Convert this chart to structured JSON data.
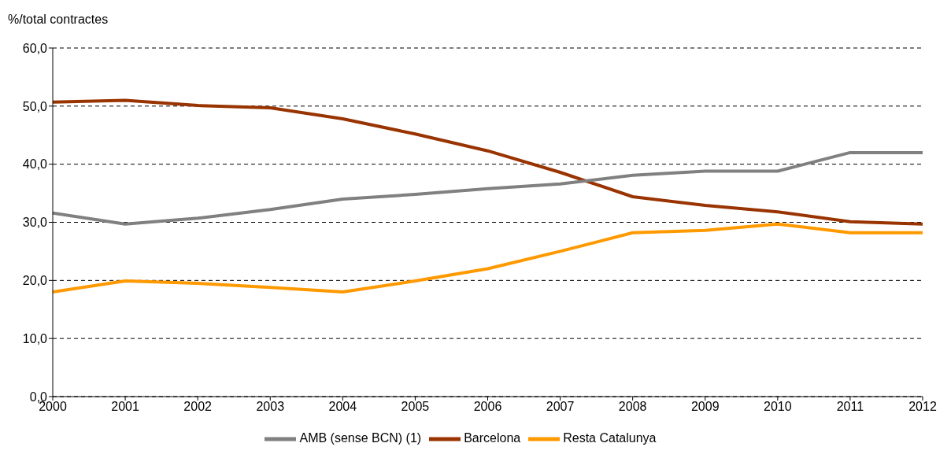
{
  "chart_data": {
    "type": "line",
    "ylabel": "%/total contractes",
    "x": [
      2000,
      2001,
      2002,
      2003,
      2004,
      2005,
      2006,
      2007,
      2008,
      2009,
      2010,
      2011,
      2012
    ],
    "xlim": [
      2000,
      2012
    ],
    "xticks": [
      2000,
      2001,
      2002,
      2003,
      2004,
      2005,
      2006,
      2007,
      2008,
      2009,
      2010,
      2011,
      2012
    ],
    "ylim": [
      0,
      60
    ],
    "yticks": [
      {
        "value": 0,
        "label": "0,0"
      },
      {
        "value": 10,
        "label": "10,0"
      },
      {
        "value": 20,
        "label": "20,0"
      },
      {
        "value": 30,
        "label": "30,0"
      },
      {
        "value": 40,
        "label": "40,0"
      },
      {
        "value": 50,
        "label": "50,0"
      },
      {
        "value": 60,
        "label": "60,0"
      }
    ],
    "grid": "y",
    "legend": "bottom",
    "marker": "none",
    "line_style": "solid",
    "series": [
      {
        "name": "Barcelona",
        "color": "#993300",
        "values": [
          50.7,
          51.0,
          50.1,
          49.7,
          47.8,
          45.2,
          42.3,
          38.6,
          34.4,
          32.9,
          31.8,
          30.1,
          29.7
        ]
      },
      {
        "name": "AMB (sense BCN) (1)",
        "color": "#808080",
        "values": [
          31.6,
          29.7,
          30.7,
          32.2,
          34.0,
          34.8,
          35.8,
          36.6,
          38.1,
          38.8,
          38.8,
          42.0,
          42.0
        ]
      },
      {
        "name": "Resta Catalunya",
        "color": "#ff9900",
        "values": [
          18.0,
          19.9,
          19.5,
          18.8,
          18.0,
          19.9,
          22.0,
          25.0,
          28.2,
          28.6,
          29.7,
          28.2,
          28.2
        ]
      }
    ]
  }
}
